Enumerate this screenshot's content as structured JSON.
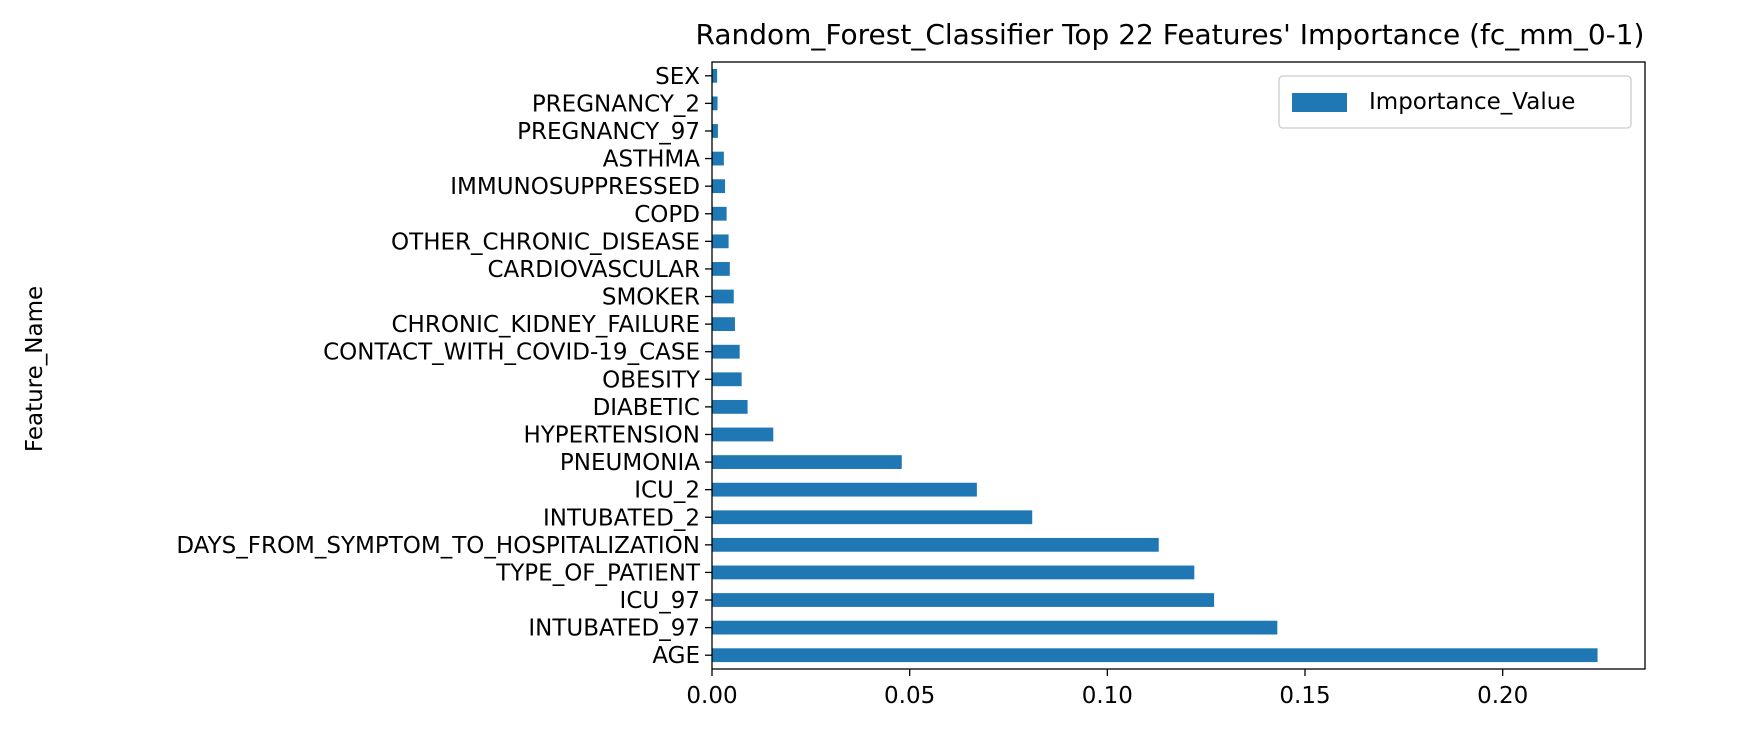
{
  "chart_data": {
    "type": "bar",
    "orientation": "horizontal",
    "title": "Random_Forest_Classifier Top 22 Features' Importance (fc_mm_0-1)",
    "xlabel": "",
    "ylabel": "Feature_Name",
    "xlim": [
      0,
      0.236
    ],
    "xticks": [
      "0.00",
      "0.05",
      "0.10",
      "0.15",
      "0.20"
    ],
    "xtick_values": [
      0,
      0.05,
      0.1,
      0.15,
      0.2
    ],
    "categories": [
      "AGE",
      "INTUBATED_97",
      "ICU_97",
      "TYPE_OF_PATIENT",
      "DAYS_FROM_SYMPTOM_TO_HOSPITALIZATION",
      "INTUBATED_2",
      "ICU_2",
      "PNEUMONIA",
      "HYPERTENSION",
      "DIABETIC",
      "OBESITY",
      "CONTACT_WITH_COVID-19_CASE",
      "CHRONIC_KIDNEY_FAILURE",
      "SMOKER",
      "CARDIOVASCULAR",
      "OTHER_CHRONIC_DISEASE",
      "COPD",
      "IMMUNOSUPPRESSED",
      "ASTHMA",
      "PREGNANCY_97",
      "PREGNANCY_2",
      "SEX"
    ],
    "series": [
      {
        "name": "Importance_Value",
        "color": "#1f77b4",
        "values": [
          0.224,
          0.143,
          0.127,
          0.122,
          0.113,
          0.081,
          0.067,
          0.048,
          0.0155,
          0.009,
          0.0075,
          0.007,
          0.0058,
          0.0055,
          0.0045,
          0.0042,
          0.0037,
          0.0033,
          0.003,
          0.0015,
          0.0014,
          0.0013
        ]
      }
    ],
    "legend_position": "top-right",
    "grid": false
  }
}
